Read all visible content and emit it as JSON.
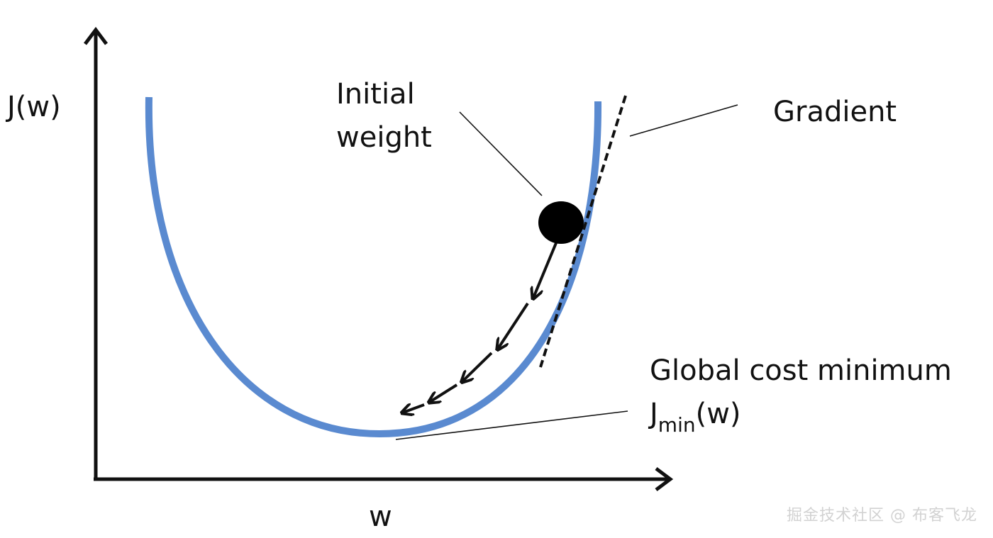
{
  "axes": {
    "y_label": "J(w)",
    "x_label": "w"
  },
  "annotations": {
    "initial_weight_line1": "Initial",
    "initial_weight_line2": "weight",
    "gradient": "Gradient",
    "global_min_title": "Global cost minimum",
    "jmin_prefix": "J",
    "jmin_subscript": "min",
    "jmin_suffix": "(w)"
  },
  "colors": {
    "curve": "#5a8ad0",
    "ink": "#111111",
    "watermark": "#d2d2d2"
  },
  "watermark": "掘金技术社区 @ 布客飞龙"
}
